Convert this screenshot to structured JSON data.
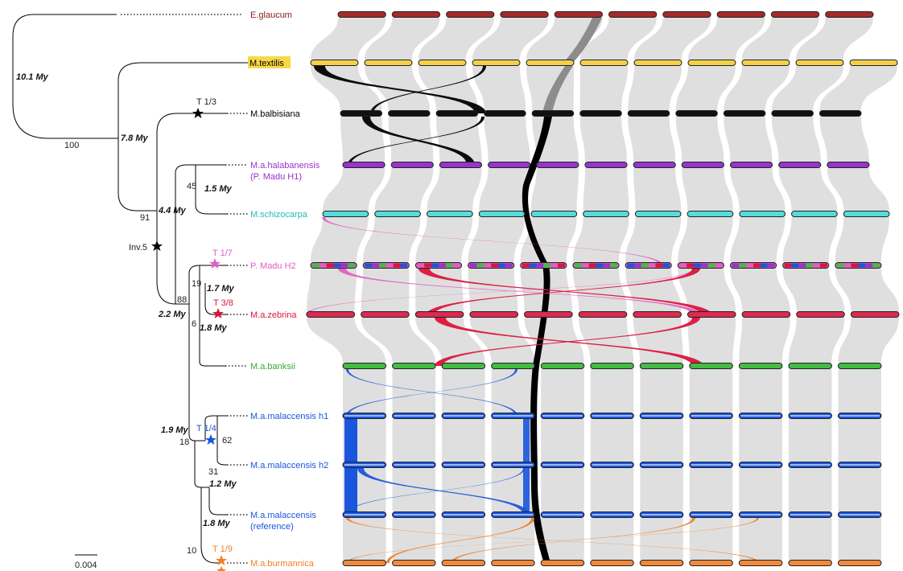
{
  "taxa": [
    {
      "label": "E.glaucum",
      "color": "#8b1a1a",
      "chr_color": "#a52a2a"
    },
    {
      "label": "M.textilis",
      "color": "#000000",
      "chr_color": "#f2d04a",
      "highlight": "#f7d84a"
    },
    {
      "label": "M.balbisiana",
      "color": "#000000",
      "chr_color": "#111111"
    },
    {
      "label": "M.a.halabanensis",
      "label2": "(P. Madu H1)",
      "color": "#9933cc",
      "chr_color": "#9933cc"
    },
    {
      "label": "M.schizocarpa",
      "color": "#33cccc",
      "chr_color": "#55dddd"
    },
    {
      "label": "P. Madu H2",
      "color": "#e060c0",
      "chr_color": "#e060c0"
    },
    {
      "label": "M.a.zebrina",
      "color": "#dc143c",
      "chr_color": "#dc2a50"
    },
    {
      "label": "M.a.banksii",
      "color": "#33aa33",
      "chr_color": "#44bb44"
    },
    {
      "label": "M.a.malaccensis h1",
      "color": "#1a55dd",
      "chr_color": "#1a55dd"
    },
    {
      "label": "M.a.malaccensis h2",
      "color": "#1a55dd",
      "chr_color": "#1a55dd"
    },
    {
      "label": "M.a.malaccensis",
      "label2": "(reference)",
      "color": "#1a55dd",
      "chr_color": "#1a55dd"
    },
    {
      "label": "M.a.burmannica",
      "color": "#f07f2a",
      "chr_color": "#f08a3a"
    }
  ],
  "ages": [
    "10.1 My",
    "7.8 My",
    "4.4 My",
    "1.5 My",
    "2.2 My",
    "1.7 My",
    "1.8 My",
    "1.9 My",
    "1.2 My",
    "1.8 My"
  ],
  "supports": [
    "100",
    "91",
    "45",
    "88",
    "19",
    "6",
    "18",
    "62",
    "31",
    "10"
  ],
  "events": [
    {
      "label": "T 1/3",
      "color": "#000000"
    },
    {
      "label": "Inv.5",
      "color": "#000000"
    },
    {
      "label": "T 1/7",
      "color": "#e060c0"
    },
    {
      "label": "T 3/8",
      "color": "#dc143c"
    },
    {
      "label": "T 1/4",
      "color": "#1a55dd"
    },
    {
      "label": "T 1/9",
      "color": "#f07f2a"
    }
  ],
  "scale_bar": "0.004",
  "colors": {
    "synteny": "#d9d9d9",
    "chr9_track": "#000000",
    "textilis_link": "#000000",
    "halabanensis_link": "#000000",
    "pmadu_link": "#e060c0",
    "zebrina_link": "#dc143c",
    "malaccensis_link": "#1a55dd",
    "burmannica_link": "#f07f2a"
  }
}
